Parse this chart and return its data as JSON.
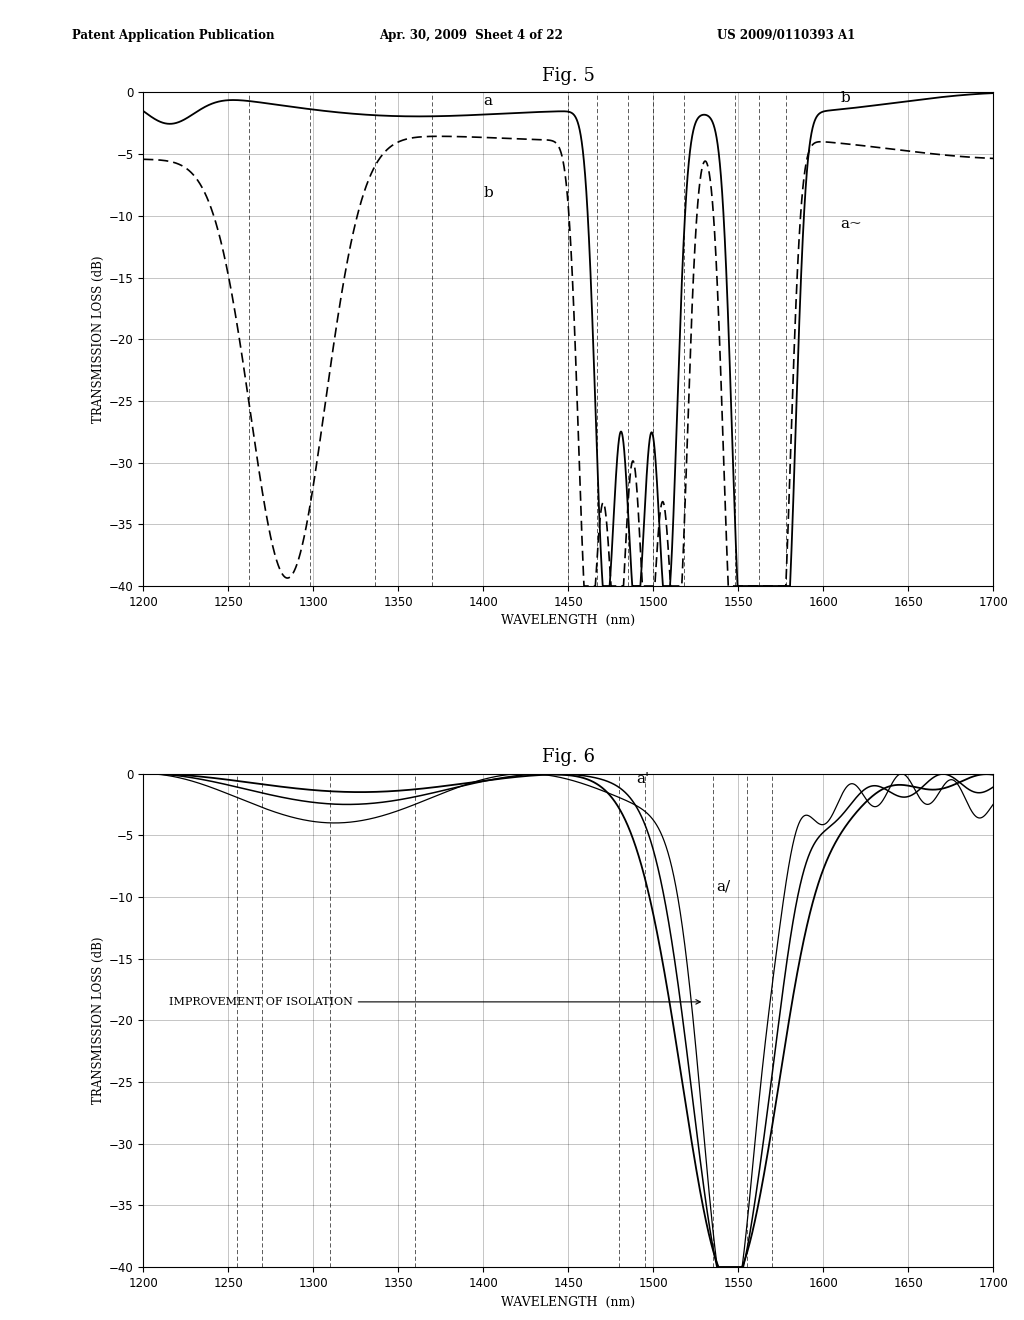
{
  "fig5_title": "Fig. 5",
  "fig6_title": "Fig. 6",
  "header_left": "Patent Application Publication",
  "header_mid": "Apr. 30, 2009  Sheet 4 of 22",
  "header_right": "US 2009/0110393 A1",
  "xlabel": "WAVELENGTH  (nm)",
  "ylabel": "TRANSMISSION LOSS (dB)",
  "xlim": [
    1200,
    1700
  ],
  "ylim": [
    -40,
    0
  ],
  "yticks": [
    0,
    -5,
    -10,
    -15,
    -20,
    -25,
    -30,
    -35,
    -40
  ],
  "xticks": [
    1200,
    1250,
    1300,
    1350,
    1400,
    1450,
    1500,
    1550,
    1600,
    1650,
    1700
  ],
  "annotation_fig6": "IMPROVEMENT OF ISOLATION",
  "background_color": "#ffffff",
  "line_color": "#000000",
  "fig5_dashed_vlines": [
    1262,
    1298,
    1336,
    1370,
    1450,
    1467,
    1485,
    1500,
    1518,
    1548,
    1562,
    1578
  ],
  "fig6_dashed_vlines": [
    1255,
    1270,
    1310,
    1360,
    1480,
    1495,
    1535,
    1555,
    1570
  ]
}
